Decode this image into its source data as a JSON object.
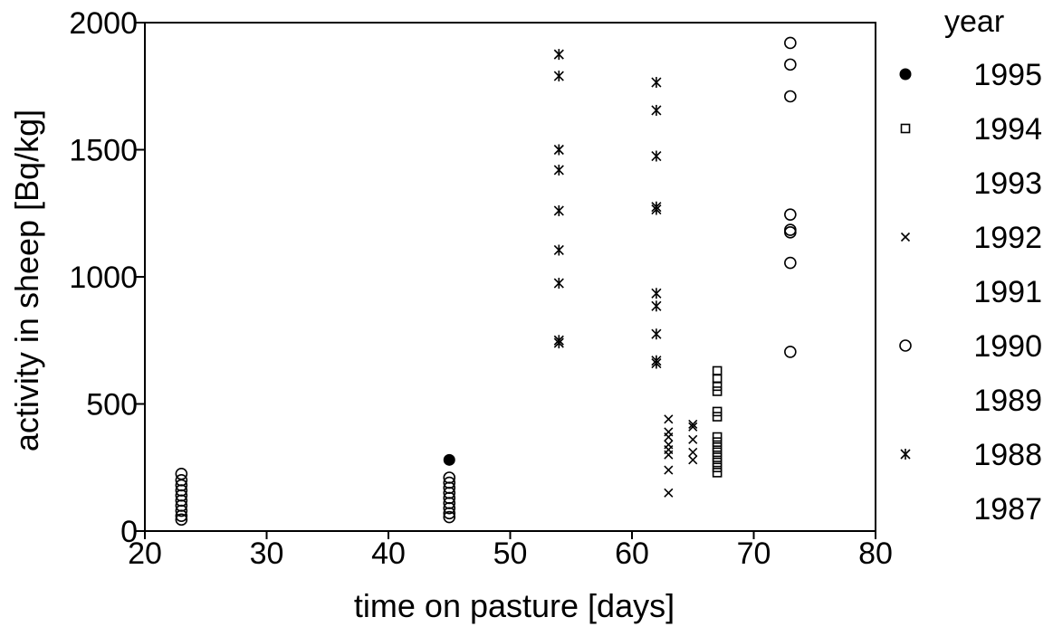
{
  "chart_data": {
    "type": "scatter",
    "title": "",
    "xlabel": "time on pasture [days]",
    "ylabel": "activity in sheep [Bq/kg]",
    "xlim": [
      20,
      80
    ],
    "ylim": [
      0,
      2000
    ],
    "xticks": [
      20,
      30,
      40,
      50,
      60,
      70,
      80
    ],
    "yticks": [
      0,
      500,
      1000,
      1500,
      2000
    ],
    "grid": false,
    "legend": {
      "title": "year",
      "placement": "right outside plot",
      "entries": [
        {
          "label": "1995",
          "marker": "filled-circle"
        },
        {
          "label": "1994",
          "marker": "square"
        },
        {
          "label": "1993",
          "marker": "none"
        },
        {
          "label": "1992",
          "marker": "x"
        },
        {
          "label": "1991",
          "marker": "none"
        },
        {
          "label": "1990",
          "marker": "circle"
        },
        {
          "label": "1989",
          "marker": "none"
        },
        {
          "label": "1988",
          "marker": "asterisk"
        },
        {
          "label": "1987",
          "marker": "none"
        }
      ]
    },
    "series": [
      {
        "name": "1995",
        "marker": "filled-circle",
        "points": [
          [
            45,
            280
          ]
        ]
      },
      {
        "name": "1994",
        "marker": "square",
        "points": [
          [
            67,
            630
          ],
          [
            67,
            600
          ],
          [
            67,
            570
          ],
          [
            67,
            550
          ],
          [
            67,
            470
          ],
          [
            67,
            450
          ],
          [
            67,
            370
          ],
          [
            67,
            350
          ],
          [
            67,
            330
          ],
          [
            67,
            310
          ],
          [
            67,
            290
          ],
          [
            67,
            270
          ],
          [
            67,
            250
          ],
          [
            67,
            230
          ]
        ]
      },
      {
        "name": "1992",
        "marker": "x",
        "points": [
          [
            63,
            440
          ],
          [
            63,
            390
          ],
          [
            63,
            370
          ],
          [
            63,
            340
          ],
          [
            63,
            320
          ],
          [
            63,
            300
          ],
          [
            63,
            240
          ],
          [
            63,
            150
          ],
          [
            65,
            420
          ],
          [
            65,
            410
          ],
          [
            65,
            360
          ],
          [
            65,
            310
          ],
          [
            65,
            280
          ]
        ]
      },
      {
        "name": "1990",
        "marker": "circle",
        "points": [
          [
            23,
            225
          ],
          [
            23,
            200
          ],
          [
            23,
            180
          ],
          [
            23,
            160
          ],
          [
            23,
            140
          ],
          [
            23,
            120
          ],
          [
            23,
            100
          ],
          [
            23,
            80
          ],
          [
            23,
            60
          ],
          [
            23,
            45
          ],
          [
            45,
            210
          ],
          [
            45,
            190
          ],
          [
            45,
            170
          ],
          [
            45,
            150
          ],
          [
            45,
            130
          ],
          [
            45,
            110
          ],
          [
            45,
            90
          ],
          [
            45,
            70
          ],
          [
            45,
            55
          ],
          [
            73,
            1920
          ],
          [
            73,
            1835
          ],
          [
            73,
            1710
          ],
          [
            73,
            1245
          ],
          [
            73,
            1185
          ],
          [
            73,
            1175
          ],
          [
            73,
            1055
          ],
          [
            73,
            705
          ]
        ]
      },
      {
        "name": "1988",
        "marker": "asterisk",
        "points": [
          [
            54,
            1875
          ],
          [
            54,
            1790
          ],
          [
            54,
            1500
          ],
          [
            54,
            1420
          ],
          [
            54,
            1260
          ],
          [
            54,
            1105
          ],
          [
            54,
            975
          ],
          [
            54,
            750
          ],
          [
            54,
            740
          ],
          [
            62,
            1765
          ],
          [
            62,
            1655
          ],
          [
            62,
            1475
          ],
          [
            62,
            1275
          ],
          [
            62,
            1265
          ],
          [
            62,
            935
          ],
          [
            62,
            885
          ],
          [
            62,
            775
          ],
          [
            62,
            670
          ],
          [
            62,
            660
          ]
        ]
      }
    ]
  }
}
